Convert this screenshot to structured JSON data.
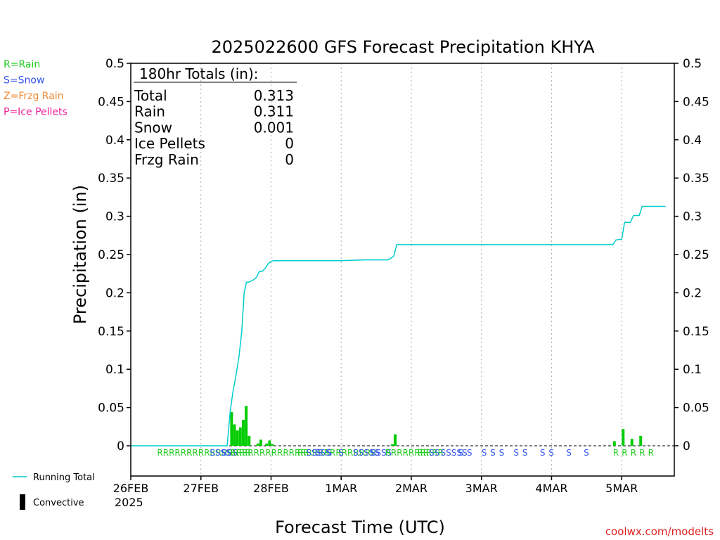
{
  "chart_data": {
    "type": "bar",
    "title": "2025022600 GFS Forecast Precipitation KHYA",
    "xlabel": "Forecast Time (UTC)",
    "ylabel": "Precipitation (in)",
    "ylim": [
      0,
      0.5
    ],
    "yticks": [
      "0",
      "0.05",
      "0.1",
      "0.15",
      "0.2",
      "0.25",
      "0.3",
      "0.35",
      "0.4",
      "0.45",
      "0.5"
    ],
    "xlim_hours": [
      0,
      186
    ],
    "grid": true,
    "x_ticks": [
      {
        "hour": 0,
        "label": "26FEB"
      },
      {
        "hour": 24,
        "label": "27FEB"
      },
      {
        "hour": 48,
        "label": "28FEB"
      },
      {
        "hour": 72,
        "label": "1MAR"
      },
      {
        "hour": 96,
        "label": "2MAR"
      },
      {
        "hour": 120,
        "label": "3MAR"
      },
      {
        "hour": 144,
        "label": "4MAR"
      },
      {
        "hour": 168,
        "label": "5MAR"
      }
    ],
    "year_label": "2025",
    "legend_left": [
      {
        "text": "R=Rain",
        "color": "#22cc22"
      },
      {
        "text": "S=Snow",
        "color": "#3355ee"
      },
      {
        "text": "Z=Frzg Rain",
        "color": "#ee8833"
      },
      {
        "text": "P=Ice Pellets",
        "color": "#ee2299"
      }
    ],
    "legend_bottom": [
      {
        "text": "Running Total",
        "color": "#00cccc",
        "kind": "line"
      },
      {
        "text": "Convective",
        "color": "#000000",
        "kind": "bar"
      }
    ],
    "totals_box": {
      "header": "180hr Totals (in):",
      "rows": [
        {
          "label": "Total",
          "value": "0.313"
        },
        {
          "label": "Rain",
          "value": "0.311"
        },
        {
          "label": "Snow",
          "value": "0.001"
        },
        {
          "label": "Ice Pellets",
          "value": "0"
        },
        {
          "label": "Frzg Rain",
          "value": "0"
        }
      ]
    },
    "bars": [
      {
        "hour": 34.5,
        "value": 0.044
      },
      {
        "hour": 35.5,
        "value": 0.028
      },
      {
        "hour": 36.5,
        "value": 0.02
      },
      {
        "hour": 37.5,
        "value": 0.024
      },
      {
        "hour": 38.5,
        "value": 0.034
      },
      {
        "hour": 39.5,
        "value": 0.052
      },
      {
        "hour": 40.5,
        "value": 0.013
      },
      {
        "hour": 43.5,
        "value": 0.003
      },
      {
        "hour": 44.5,
        "value": 0.008
      },
      {
        "hour": 46.5,
        "value": 0.003
      },
      {
        "hour": 47.5,
        "value": 0.007
      },
      {
        "hour": 48.5,
        "value": 0.002
      },
      {
        "hour": 89.5,
        "value": 0.002
      },
      {
        "hour": 90.5,
        "value": 0.015
      },
      {
        "hour": 165.5,
        "value": 0.006
      },
      {
        "hour": 168.5,
        "value": 0.022
      },
      {
        "hour": 171.5,
        "value": 0.009
      },
      {
        "hour": 174.5,
        "value": 0.013
      }
    ],
    "running_total": {
      "name": "Running Total",
      "hours": [
        0,
        33,
        34,
        35,
        36,
        37,
        38,
        38.8,
        39.6,
        40.3,
        41,
        42,
        43,
        44,
        45,
        46,
        47,
        48,
        49,
        50,
        51,
        60,
        72,
        80,
        84,
        88,
        89,
        90,
        91,
        120,
        160,
        165,
        166,
        168,
        169,
        171,
        172,
        174,
        175,
        183
      ],
      "values": [
        0,
        0,
        0.044,
        0.072,
        0.092,
        0.116,
        0.15,
        0.2,
        0.214,
        0.214,
        0.215,
        0.217,
        0.22,
        0.228,
        0.228,
        0.232,
        0.238,
        0.241,
        0.242,
        0.242,
        0.242,
        0.242,
        0.242,
        0.243,
        0.243,
        0.243,
        0.245,
        0.248,
        0.263,
        0.263,
        0.263,
        0.263,
        0.269,
        0.27,
        0.292,
        0.292,
        0.301,
        0.301,
        0.313,
        0.313
      ]
    },
    "ptype_row": [
      {
        "hour": 9,
        "label": "RRRRRRRRRRRRRRRR",
        "color": "#22cc22"
      },
      {
        "hour": 27,
        "label": "SSSS",
        "color": "#3355ee"
      },
      {
        "hour": 31,
        "label": "SSS",
        "color": "#3355ee"
      },
      {
        "hour": 34,
        "label": "RRRRRRRRRRRRRRRRRRRRRRRRR",
        "color": "#22cc22"
      },
      {
        "hour": 57,
        "label": "RR",
        "color": "#22cc22"
      },
      {
        "hour": 60,
        "label": "SSS",
        "color": "#3355ee"
      },
      {
        "hour": 63,
        "label": "SSS",
        "color": "#3355ee"
      },
      {
        "hour": 67,
        "label": "S",
        "color": "#3355ee"
      },
      {
        "hour": 71,
        "label": "S",
        "color": "#3355ee"
      },
      {
        "hour": 76,
        "label": "SSSSS",
        "color": "#3355ee"
      },
      {
        "hour": 82,
        "label": "SSSS",
        "color": "#3355ee"
      },
      {
        "hour": 87,
        "label": "RRRRRRRRRR",
        "color": "#22cc22"
      },
      {
        "hour": 98,
        "label": "RR",
        "color": "#22cc22"
      },
      {
        "hour": 102,
        "label": "SS",
        "color": "#3355ee"
      },
      {
        "hour": 106,
        "label": "SSSSS",
        "color": "#3355ee"
      },
      {
        "hour": 112,
        "label": "S",
        "color": "#3355ee"
      },
      {
        "hour": 115,
        "label": "S",
        "color": "#3355ee"
      },
      {
        "hour": 120,
        "label": "S",
        "color": "#3355ee"
      },
      {
        "hour": 123,
        "label": "S",
        "color": "#3355ee"
      },
      {
        "hour": 126,
        "label": "S",
        "color": "#3355ee"
      },
      {
        "hour": 131,
        "label": "S",
        "color": "#3355ee"
      },
      {
        "hour": 134,
        "label": "S",
        "color": "#3355ee"
      },
      {
        "hour": 140,
        "label": "S",
        "color": "#3355ee"
      },
      {
        "hour": 143,
        "label": "S",
        "color": "#3355ee"
      },
      {
        "hour": 149,
        "label": "S",
        "color": "#3355ee"
      },
      {
        "hour": 155,
        "label": "S",
        "color": "#3355ee"
      },
      {
        "hour": 165,
        "label": "R",
        "color": "#22cc22"
      },
      {
        "hour": 168,
        "label": "R",
        "color": "#22cc22"
      },
      {
        "hour": 171,
        "label": "R",
        "color": "#22cc22"
      },
      {
        "hour": 174,
        "label": "R",
        "color": "#22cc22"
      },
      {
        "hour": 177,
        "label": "R",
        "color": "#22cc22"
      }
    ],
    "bar_color": "#00cc00",
    "line_color": "#00cccc",
    "watermark": {
      "text": "coolwx.com/modelts",
      "color": "#dd2222"
    }
  }
}
